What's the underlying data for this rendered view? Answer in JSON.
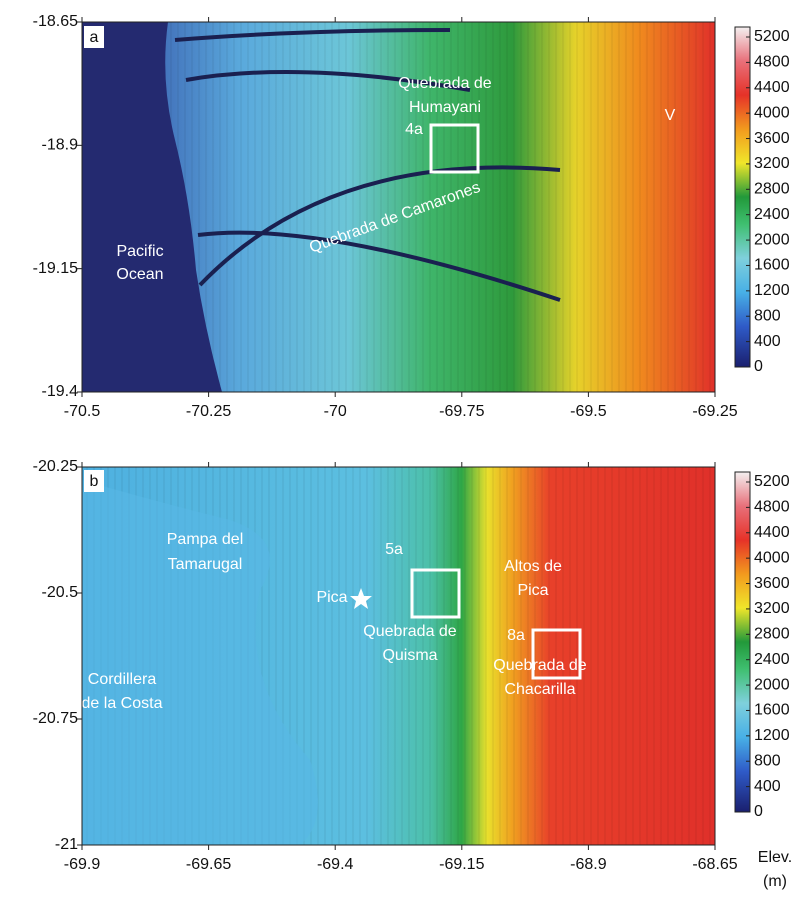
{
  "panels": [
    {
      "label": "a",
      "xlim": [
        -70.5,
        -69.25
      ],
      "ylim": [
        -19.4,
        -18.65
      ],
      "xticks": [
        -70.5,
        -70.25,
        -70,
        -69.75,
        -69.5,
        -69.25
      ],
      "yticks": [
        -18.65,
        -18.9,
        -19.15,
        -19.4
      ],
      "places": [
        "Quebrada de",
        "Humayani",
        "4a",
        "V",
        "Quebrada de Camarones",
        "Pacific",
        "Ocean"
      ]
    },
    {
      "label": "b",
      "xlim": [
        -69.9,
        -68.65
      ],
      "ylim": [
        -21,
        -20.25
      ],
      "xticks": [
        -69.9,
        -69.65,
        -69.4,
        -69.15,
        -68.9,
        -68.65
      ],
      "yticks": [
        -20.25,
        -20.5,
        -20.75,
        -21
      ],
      "places": [
        "Pampa del",
        "Tamarugal",
        "Pica",
        "5a",
        "Quebrada de",
        "Quisma",
        "Altos de",
        "Pica",
        "8a",
        "Quebrada de",
        "Chacarilla",
        "Cordillera",
        "de la Costa"
      ]
    }
  ],
  "colorbar": {
    "lim": [
      0,
      5200
    ],
    "ticks": [
      0,
      400,
      800,
      1200,
      1600,
      2000,
      2400,
      2800,
      3200,
      3600,
      4000,
      4400,
      4800,
      5200
    ],
    "label": [
      "Elev.",
      "(m)"
    ]
  }
}
